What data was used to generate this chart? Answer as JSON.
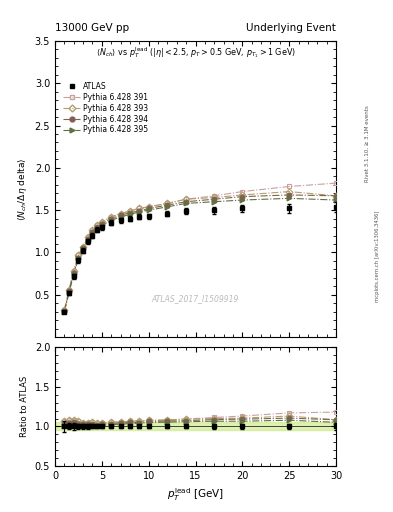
{
  "title_left": "13000 GeV pp",
  "title_right": "Underlying Event",
  "watermark": "ATLAS_2017_I1509919",
  "ylim_main": [
    0.0,
    3.5
  ],
  "ylim_ratio": [
    0.5,
    2.0
  ],
  "xlim": [
    0,
    30
  ],
  "yticks_main": [
    0.5,
    1.0,
    1.5,
    2.0,
    2.5,
    3.0,
    3.5
  ],
  "yticks_ratio": [
    0.5,
    1.0,
    1.5,
    2.0
  ],
  "xticks": [
    0,
    5,
    10,
    15,
    20,
    25,
    30
  ],
  "atlas_x": [
    1.0,
    1.5,
    2.0,
    2.5,
    3.0,
    3.5,
    4.0,
    4.5,
    5.0,
    6.0,
    7.0,
    8.0,
    9.0,
    10.0,
    12.0,
    14.0,
    17.0,
    20.0,
    25.0,
    30.0
  ],
  "atlas_y": [
    0.3,
    0.52,
    0.72,
    0.91,
    1.02,
    1.13,
    1.2,
    1.27,
    1.3,
    1.35,
    1.38,
    1.4,
    1.42,
    1.43,
    1.46,
    1.49,
    1.5,
    1.52,
    1.52,
    1.54
  ],
  "atlas_yerr": [
    0.02,
    0.02,
    0.03,
    0.03,
    0.03,
    0.03,
    0.03,
    0.03,
    0.03,
    0.03,
    0.03,
    0.03,
    0.03,
    0.03,
    0.03,
    0.03,
    0.04,
    0.04,
    0.05,
    0.06
  ],
  "py391_x": [
    1.0,
    1.5,
    2.0,
    2.5,
    3.0,
    3.5,
    4.0,
    4.5,
    5.0,
    6.0,
    7.0,
    8.0,
    9.0,
    10.0,
    12.0,
    14.0,
    17.0,
    20.0,
    25.0,
    30.0
  ],
  "py391_y": [
    0.32,
    0.56,
    0.78,
    0.97,
    1.07,
    1.18,
    1.26,
    1.32,
    1.36,
    1.42,
    1.46,
    1.49,
    1.52,
    1.54,
    1.58,
    1.63,
    1.67,
    1.72,
    1.78,
    1.82
  ],
  "py391_color": "#c8a0a0",
  "py391_marker": "s",
  "py391_marker_facecolor": "none",
  "py391_linestyle": "-.",
  "py393_x": [
    1.0,
    1.5,
    2.0,
    2.5,
    3.0,
    3.5,
    4.0,
    4.5,
    5.0,
    6.0,
    7.0,
    8.0,
    9.0,
    10.0,
    12.0,
    14.0,
    17.0,
    20.0,
    25.0,
    30.0
  ],
  "py393_y": [
    0.32,
    0.56,
    0.78,
    0.97,
    1.07,
    1.18,
    1.26,
    1.32,
    1.36,
    1.42,
    1.46,
    1.49,
    1.52,
    1.54,
    1.58,
    1.63,
    1.65,
    1.68,
    1.72,
    1.67
  ],
  "py393_color": "#b0a070",
  "py393_marker": "D",
  "py393_marker_facecolor": "none",
  "py393_linestyle": "-.",
  "py394_x": [
    1.0,
    1.5,
    2.0,
    2.5,
    3.0,
    3.5,
    4.0,
    4.5,
    5.0,
    6.0,
    7.0,
    8.0,
    9.0,
    10.0,
    12.0,
    14.0,
    17.0,
    20.0,
    25.0,
    30.0
  ],
  "py394_y": [
    0.31,
    0.54,
    0.76,
    0.94,
    1.05,
    1.16,
    1.24,
    1.3,
    1.34,
    1.4,
    1.44,
    1.47,
    1.49,
    1.52,
    1.56,
    1.6,
    1.63,
    1.66,
    1.68,
    1.67
  ],
  "py394_color": "#806050",
  "py394_marker": "o",
  "py394_marker_facecolor": "#806050",
  "py394_linestyle": "-.",
  "py395_x": [
    1.0,
    1.5,
    2.0,
    2.5,
    3.0,
    3.5,
    4.0,
    4.5,
    5.0,
    6.0,
    7.0,
    8.0,
    9.0,
    10.0,
    12.0,
    14.0,
    17.0,
    20.0,
    25.0,
    30.0
  ],
  "py395_y": [
    0.3,
    0.53,
    0.74,
    0.93,
    1.04,
    1.14,
    1.22,
    1.28,
    1.32,
    1.38,
    1.42,
    1.45,
    1.48,
    1.5,
    1.54,
    1.58,
    1.6,
    1.62,
    1.64,
    1.62
  ],
  "py395_color": "#607040",
  "py395_marker": ">",
  "py395_marker_facecolor": "#607040",
  "py395_linestyle": "-.",
  "band_color": "#c8e880",
  "band_alpha": 0.6,
  "band_low": 0.95,
  "band_high": 1.05
}
